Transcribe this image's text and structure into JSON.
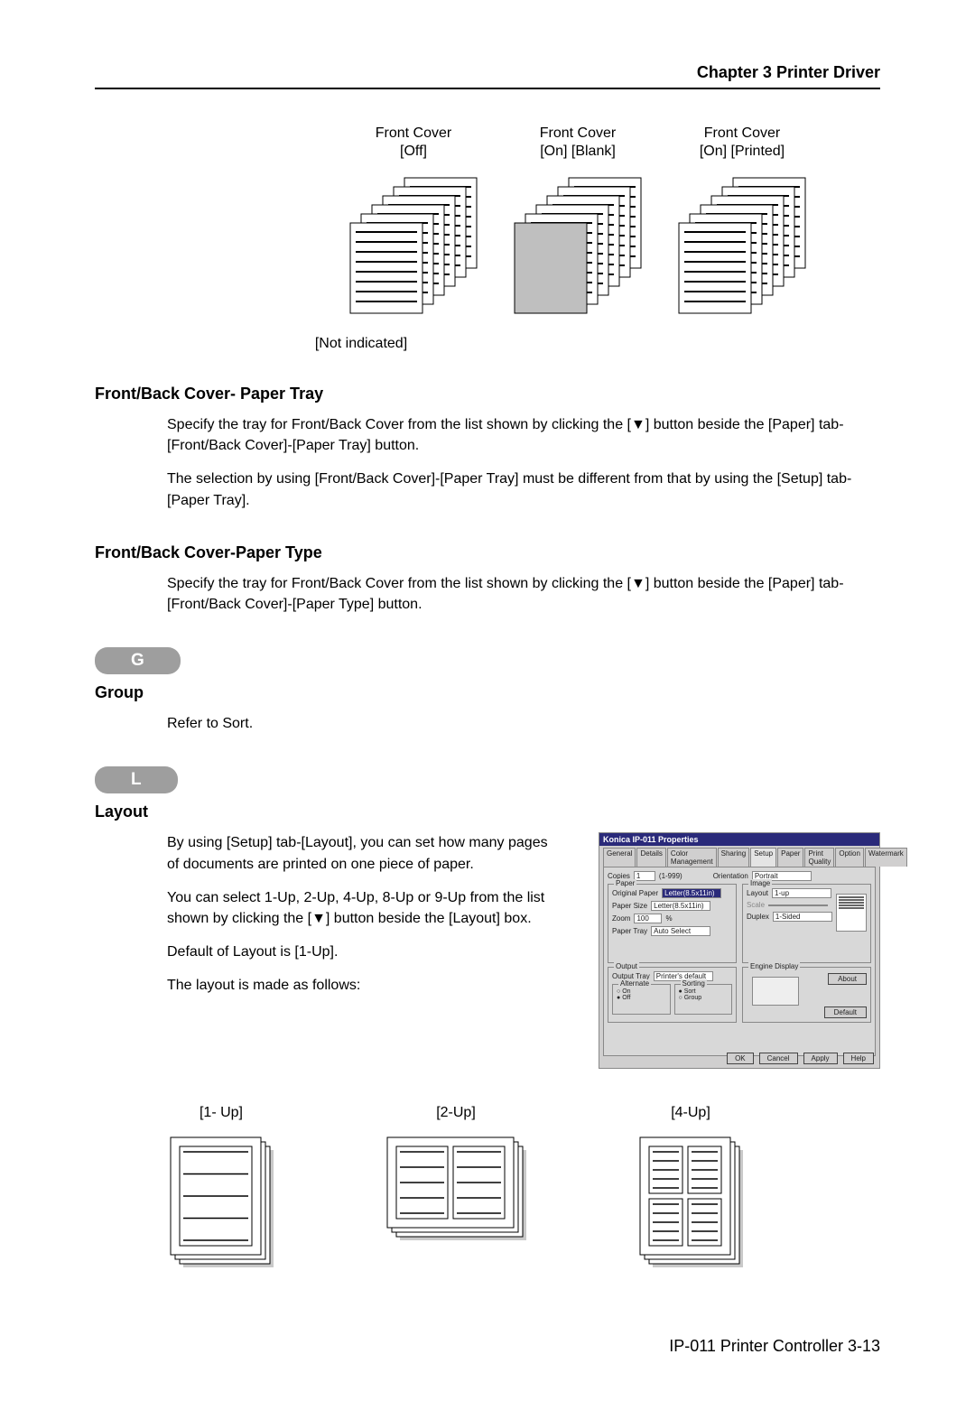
{
  "chapter": "Chapter 3  Printer Driver",
  "covers": [
    {
      "title": "Front Cover",
      "sub": "[Off]",
      "frontGray": false
    },
    {
      "title": "Front Cover",
      "sub": " [On] [Blank]",
      "frontGray": true
    },
    {
      "title": "Front Cover",
      "sub": " [On] [Printed]",
      "frontGray": false
    }
  ],
  "note": "[Not indicated]",
  "sections": {
    "paperTray": {
      "heading": "Front/Back Cover- Paper Tray",
      "p1": "Specify the tray for Front/Back Cover from the list shown by clicking the [▼] button beside the [Paper] tab-[Front/Back Cover]-[Paper Tray] button.",
      "p2": "The selection by using [Front/Back Cover]-[Paper Tray] must be different from that by using the [Setup] tab-[Paper Tray]."
    },
    "paperType": {
      "heading": "Front/Back Cover-Paper Type",
      "p1": "Specify the tray for Front/Back Cover from the list shown by clicking the [▼] button beside the [Paper] tab-[Front/Back Cover]-[Paper Type] button."
    },
    "group": {
      "pill": "G",
      "heading": "Group",
      "p1": "Refer to Sort."
    },
    "layout": {
      "pill": "L",
      "heading": "Layout",
      "p1": "By using [Setup] tab-[Layout], you can set how many pages of documents are printed on one piece of paper.",
      "p2": "You can select 1-Up, 2-Up, 4-Up, 8-Up or 9-Up from the list shown by clicking the [▼] button beside the [Layout] box.",
      "p3": "Default of Layout is [1-Up].",
      "p4": "The layout is made as follows:"
    }
  },
  "dialog": {
    "title": "Konica IP-011 Properties",
    "tabs": [
      "General",
      "Details",
      "Color Management",
      "Sharing",
      "Setup",
      "Paper",
      "Print Quality",
      "Option",
      "Watermark"
    ],
    "activeTab": "Setup",
    "copies_label": "Copies",
    "copies_value": "1",
    "copies_range": "(1-999)",
    "orientation_label": "Orientation",
    "orientation_value": "Portrait",
    "paper_legend": "Paper",
    "original_label": "Original Paper",
    "original_value": "Letter(8.5x11in)",
    "paper_size_label": "Paper Size",
    "paper_size_value": "Letter(8.5x11in)",
    "zoom_label": "Zoom",
    "zoom_value": "100",
    "paper_tray_label": "Paper Tray",
    "paper_tray_value": "Auto Select",
    "image_legend": "Image",
    "layout_label": "Layout",
    "layout_value": "1-up",
    "scale_label": "Scale",
    "duplex_label": "Duplex",
    "duplex_value": "1-Sided",
    "output_legend": "Output",
    "output_tray_label": "Output Tray",
    "output_tray_value": "Printer's default",
    "alternate_legend": "Alternate",
    "sorting_legend": "Sorting",
    "on_label": "On",
    "off_label": "Off",
    "sort_label": "Sort",
    "group_label": "Group",
    "engine_display_legend": "Engine Display",
    "about_btn": "About",
    "default_btn": "Default",
    "buttons": [
      "OK",
      "Cancel",
      "Apply",
      "Help"
    ]
  },
  "layoutExamples": [
    {
      "cap": "[1- Up]",
      "grid": [
        1,
        1
      ]
    },
    {
      "cap": "[2-Up]",
      "grid": [
        1,
        2
      ]
    },
    {
      "cap": "[4-Up]",
      "grid": [
        2,
        2
      ]
    }
  ],
  "footer": "IP-011 Printer Controller  3-13"
}
